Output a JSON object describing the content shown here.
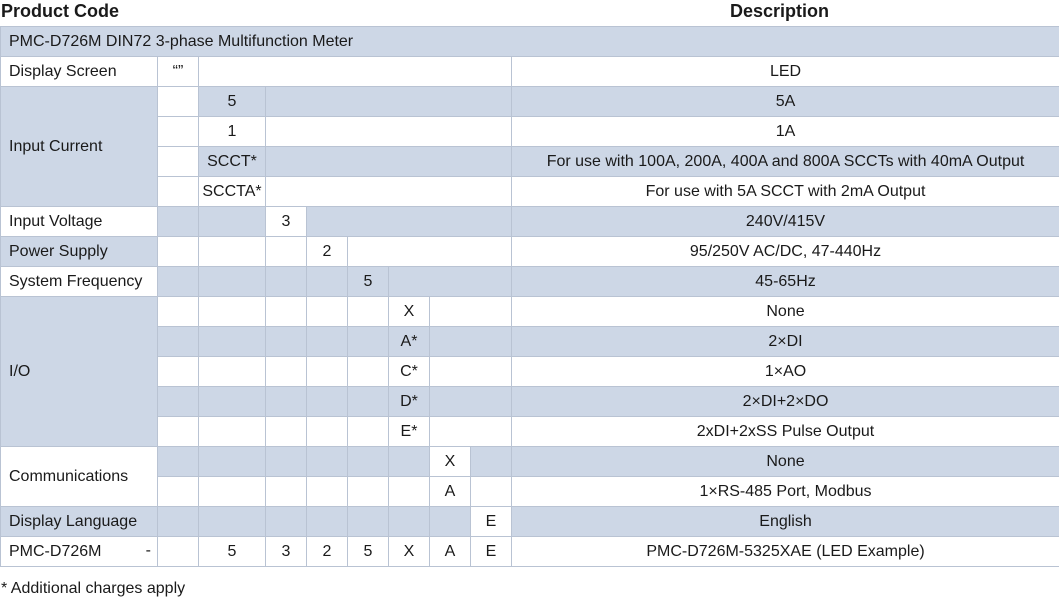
{
  "headers": {
    "product_code": "Product Code",
    "description": "Description"
  },
  "title_row": "PMC-D726M DIN72 3-phase Multifunction Meter",
  "groups": {
    "display_screen": "Display Screen",
    "input_current": "Input Current",
    "input_voltage": "Input Voltage",
    "power_supply": "Power Supply",
    "system_frequency": "System Frequency",
    "io": "I/O",
    "communications": "Communications",
    "display_language": "Display Language"
  },
  "codes": {
    "display_screen": "“”",
    "current_5": "5",
    "current_1": "1",
    "current_scct": "SCCT*",
    "current_sccta": "SCCTA*",
    "voltage_3": "3",
    "power_2": "2",
    "freq_5": "5",
    "io_x": "X",
    "io_a": "A*",
    "io_c": "C*",
    "io_d": "D*",
    "io_e": "E*",
    "comm_x": "X",
    "comm_a": "A",
    "lang_e": "E"
  },
  "descriptions": {
    "display_screen": "LED",
    "current_5": "5A",
    "current_1": "1A",
    "current_scct": "For use with 100A, 200A, 400A and 800A SCCTs with 40mA Output",
    "current_sccta": "For use with 5A SCCT with 2mA Output",
    "voltage_3": "240V/415V",
    "power_2": "95/250V AC/DC, 47-440Hz",
    "freq_5": "45-65Hz",
    "io_x": "None",
    "io_a": "2×DI",
    "io_c": "1×AO",
    "io_d": "2×DI+2×DO",
    "io_e": "2xDI+2xSS Pulse Output",
    "comm_x": "None",
    "comm_a": "1×RS-485 Port, Modbus",
    "lang_e": "English"
  },
  "example": {
    "model": "PMC-D726M",
    "dash": "-",
    "codes": [
      "5",
      "3",
      "2",
      "5",
      "X",
      "A",
      "E"
    ],
    "description": "PMC-D726M-5325XAE (LED Example)"
  },
  "footnote": "* Additional charges apply",
  "colors": {
    "band_blue": "#cdd7e6",
    "border": "#b9c3d3"
  }
}
